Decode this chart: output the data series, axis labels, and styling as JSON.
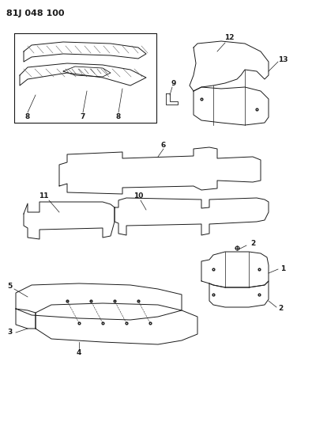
{
  "title": "81J 048 100",
  "background_color": "#ffffff",
  "line_color": "#1a1a1a",
  "fig_width": 3.95,
  "fig_height": 5.33,
  "dpi": 100
}
